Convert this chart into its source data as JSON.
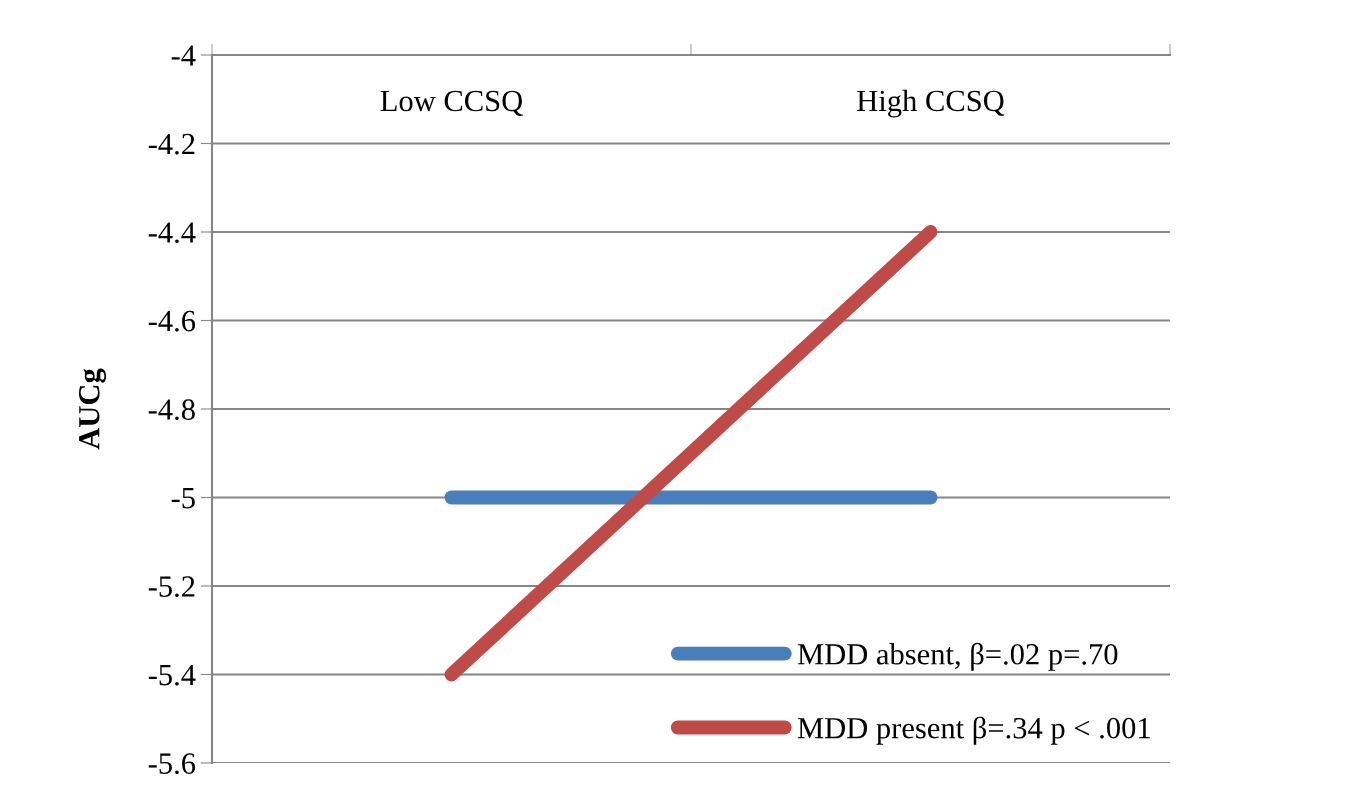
{
  "chart_data": {
    "type": "line",
    "ylabel": "AUCg",
    "categories": [
      "Low CCSQ",
      "High CCSQ"
    ],
    "series": [
      {
        "name": "MDD absent, β=.02 p=.70",
        "color": "#4a7ebb",
        "values": [
          -5.0,
          -5.0
        ]
      },
      {
        "name": "MDD present β=.34 p < .001",
        "color": "#be4b48",
        "values": [
          -5.4,
          -4.4
        ]
      }
    ],
    "ylim": [
      -5.6,
      -4
    ],
    "yticks": [
      -5.6,
      -5.4,
      -5.2,
      -5,
      -4.8,
      -4.6,
      -4.4,
      -4.2,
      -4
    ],
    "grid": "y",
    "legend": "bottom right",
    "line_style": "solid"
  }
}
